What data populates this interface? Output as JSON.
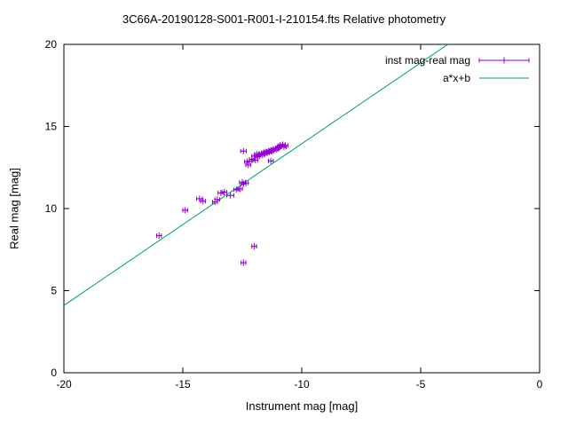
{
  "colors": {
    "points": "#9400d3",
    "fit_line": "#009e73",
    "axis": "#000000"
  },
  "chart_data": {
    "type": "scatter",
    "title": "3C66A-20190128-S001-R001-I-210154.fts Relative photometry",
    "xlabel": "Instrument mag [mag]",
    "ylabel": "Real mag [mag]",
    "xlim": [
      -20,
      0
    ],
    "ylim": [
      0,
      20
    ],
    "xticks": [
      -20,
      -15,
      -10,
      -5,
      0
    ],
    "yticks": [
      0,
      5,
      10,
      15,
      20
    ],
    "grid": false,
    "legend_position": "top-right-inside",
    "fit_line": {
      "label": "a*x+b",
      "a": 0.985,
      "b": 23.8
    },
    "series": [
      {
        "name": "inst mag-real mag",
        "marker": "plus-with-xerrorbar",
        "points": [
          [
            -16.0,
            8.35,
            0.1
          ],
          [
            -14.9,
            9.9,
            0.1
          ],
          [
            -14.3,
            10.6,
            0.12
          ],
          [
            -14.15,
            10.45,
            0.1
          ],
          [
            -13.65,
            10.4,
            0.1
          ],
          [
            -13.55,
            10.55,
            0.1
          ],
          [
            -13.4,
            10.95,
            0.12
          ],
          [
            -13.25,
            11.0,
            0.1
          ],
          [
            -13.0,
            10.8,
            0.15
          ],
          [
            -12.75,
            11.15,
            0.1
          ],
          [
            -12.6,
            11.2,
            0.1
          ],
          [
            -12.5,
            11.6,
            0.12
          ],
          [
            -12.45,
            11.5,
            0.1
          ],
          [
            -12.35,
            11.55,
            0.1
          ],
          [
            -12.45,
            13.5,
            0.12
          ],
          [
            -12.3,
            12.85,
            0.1
          ],
          [
            -12.25,
            12.65,
            0.1
          ],
          [
            -12.2,
            12.9,
            0.1
          ],
          [
            -12.1,
            13.0,
            0.1
          ],
          [
            -12.0,
            13.2,
            0.1
          ],
          [
            -11.95,
            12.95,
            0.1
          ],
          [
            -11.9,
            13.3,
            0.08
          ],
          [
            -11.85,
            13.15,
            0.08
          ],
          [
            -11.8,
            13.3,
            0.08
          ],
          [
            -11.7,
            13.35,
            0.08
          ],
          [
            -11.65,
            13.25,
            0.08
          ],
          [
            -11.6,
            13.4,
            0.08
          ],
          [
            -11.55,
            13.35,
            0.08
          ],
          [
            -11.5,
            13.45,
            0.08
          ],
          [
            -11.45,
            13.4,
            0.08
          ],
          [
            -11.4,
            13.5,
            0.08
          ],
          [
            -11.35,
            13.45,
            0.08
          ],
          [
            -11.3,
            12.9,
            0.1
          ],
          [
            -11.3,
            13.55,
            0.08
          ],
          [
            -11.25,
            13.5,
            0.08
          ],
          [
            -11.2,
            13.6,
            0.08
          ],
          [
            -11.1,
            13.65,
            0.08
          ],
          [
            -11.05,
            13.6,
            0.08
          ],
          [
            -11.0,
            13.7,
            0.08
          ],
          [
            -10.95,
            13.75,
            0.08
          ],
          [
            -10.9,
            13.85,
            0.1
          ],
          [
            -10.8,
            13.9,
            0.1
          ],
          [
            -10.75,
            13.75,
            0.1
          ],
          [
            -10.7,
            13.85,
            0.12
          ],
          [
            -12.45,
            6.7,
            0.1
          ],
          [
            -12.0,
            7.7,
            0.1
          ]
        ]
      }
    ]
  }
}
